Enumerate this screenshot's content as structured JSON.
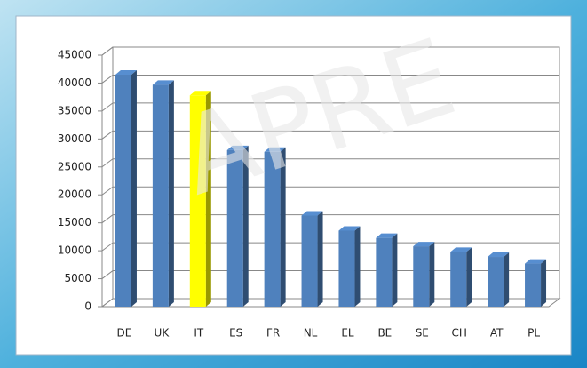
{
  "chart_data": {
    "type": "bar3d",
    "watermark": "APRE",
    "categories": [
      "DE",
      "UK",
      "IT",
      "ES",
      "FR",
      "NL",
      "EL",
      "BE",
      "SE",
      "CH",
      "AT",
      "PL"
    ],
    "values": [
      41500,
      39700,
      37800,
      28000,
      27700,
      16300,
      13600,
      12300,
      10800,
      9800,
      8900,
      7700
    ],
    "colors": [
      "#4f81bd",
      "#4f81bd",
      "#ffff00",
      "#4f81bd",
      "#4f81bd",
      "#4f81bd",
      "#4f81bd",
      "#4f81bd",
      "#4f81bd",
      "#4f81bd",
      "#4f81bd",
      "#4f81bd"
    ],
    "ylim": [
      0,
      45000
    ],
    "yticks": [
      0,
      5000,
      10000,
      15000,
      20000,
      25000,
      30000,
      35000,
      40000,
      45000
    ],
    "grid": true
  }
}
